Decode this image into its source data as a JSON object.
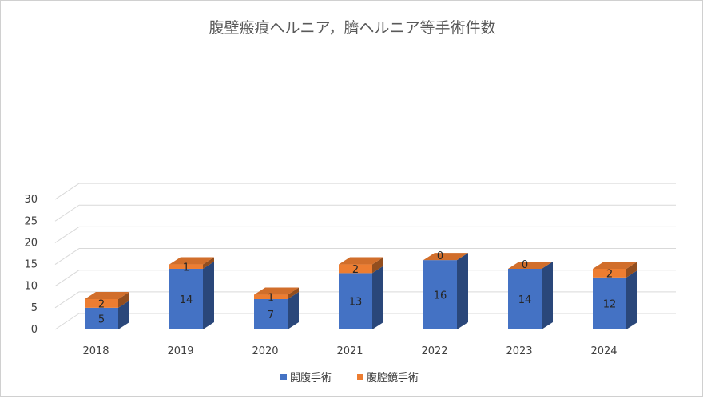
{
  "chart_data": {
    "type": "bar",
    "stacked": true,
    "three_d": true,
    "title": "腹壁瘢痕ヘルニア，臍ヘルニア等手術件数",
    "categories": [
      "2018",
      "2019",
      "2020",
      "2021",
      "2022",
      "2023",
      "2024"
    ],
    "series": [
      {
        "name": "開腹手術",
        "values": [
          5,
          14,
          7,
          13,
          16,
          14,
          12
        ],
        "color": "#4472C4"
      },
      {
        "name": "腹腔鏡手術",
        "values": [
          2,
          1,
          1,
          2,
          0,
          0,
          2
        ],
        "color": "#ED7D31"
      }
    ],
    "ylim": [
      0,
      30
    ],
    "yticks": [
      "0",
      "5",
      "10",
      "15",
      "20",
      "25",
      "30"
    ],
    "grid": true,
    "legend_position": "bottom",
    "data_labels": true
  }
}
